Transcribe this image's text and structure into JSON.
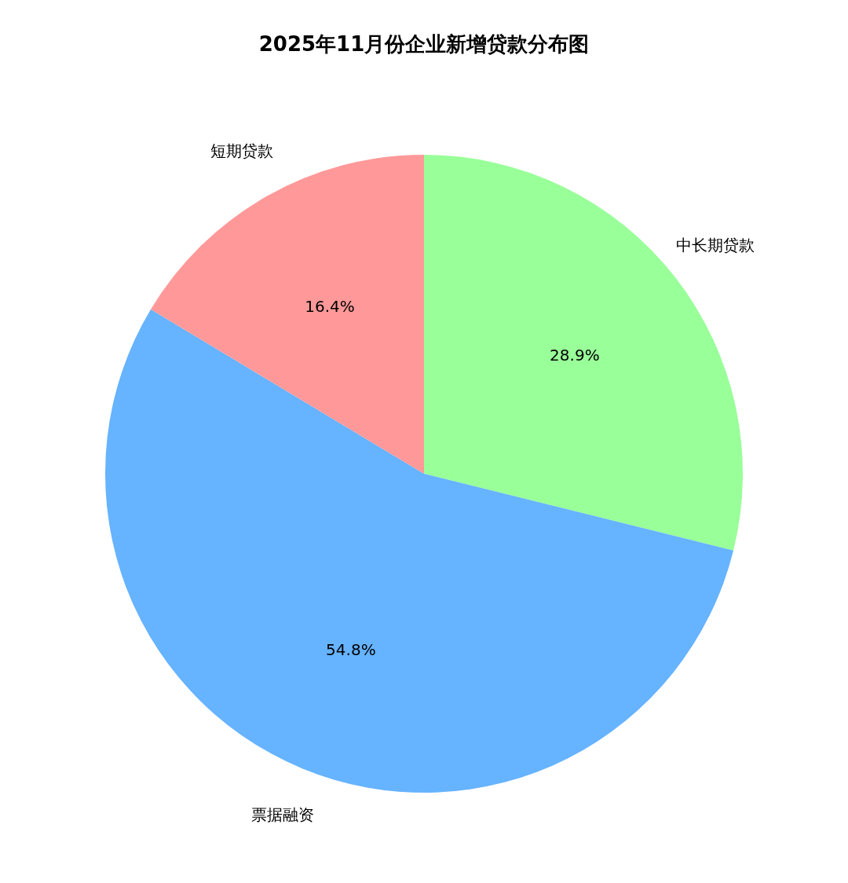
{
  "chart_data": {
    "type": "pie",
    "title": "2025年11月份企业新增贷款分布图",
    "categories": [
      "中长期贷款",
      "票据融资",
      "短期贷款"
    ],
    "values": [
      28.9,
      54.8,
      16.4
    ],
    "value_labels": [
      "28.9%",
      "54.8%",
      "16.4%"
    ],
    "colors": [
      "#99ff99",
      "#66b3ff",
      "#ff9999"
    ],
    "legend": false
  }
}
